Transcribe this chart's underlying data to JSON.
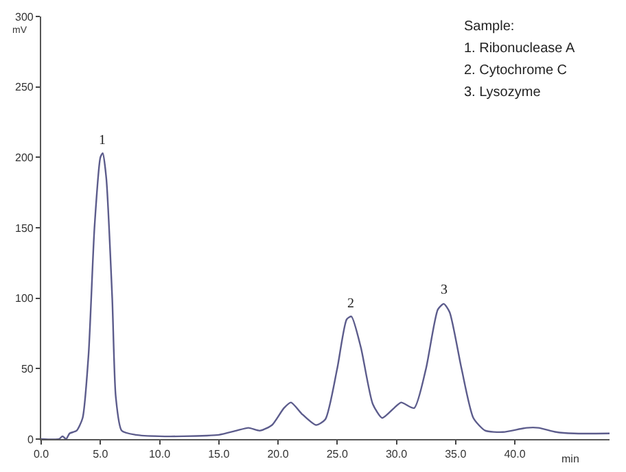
{
  "chart_data": {
    "type": "line",
    "xlabel": "min",
    "ylabel": "mV",
    "x": [
      0,
      1.5,
      1.8,
      2.1,
      2.4,
      3.0,
      3.5,
      4.0,
      4.5,
      5.0,
      5.2,
      5.5,
      6.0,
      6.3,
      6.8,
      8,
      10,
      12,
      15,
      16.5,
      17.5,
      18.5,
      19.5,
      20.5,
      21.1,
      22,
      23.2,
      24,
      25,
      25.8,
      26.2,
      27,
      28,
      28.8,
      29.8,
      30.4,
      31.5,
      32.5,
      33.5,
      34,
      34.5,
      35.5,
      36.5,
      37.5,
      39,
      41,
      42,
      43.5,
      45,
      48
    ],
    "series": [
      {
        "color": "#5c5c8c",
        "values": [
          0,
          0,
          2,
          0,
          4,
          6,
          15,
          60,
          150,
          200,
          203,
          185,
          100,
          30,
          6,
          3,
          2,
          2,
          3,
          6,
          8,
          6,
          10,
          22,
          26,
          18,
          10,
          14,
          50,
          85,
          87,
          65,
          25,
          15,
          22,
          26,
          22,
          50,
          92,
          96,
          90,
          50,
          15,
          6,
          5,
          8,
          8,
          5,
          4,
          4
        ]
      }
    ],
    "xlim": [
      0,
      48
    ],
    "ylim": [
      0,
      300
    ],
    "xticks": [
      {
        "value": 0,
        "label": "0.0"
      },
      {
        "value": 5,
        "label": "5.0"
      },
      {
        "value": 10,
        "label": "10.0"
      },
      {
        "value": 15,
        "label": "15.0"
      },
      {
        "value": 20,
        "label": "20.0"
      },
      {
        "value": 25,
        "label": "25.0"
      },
      {
        "value": 30,
        "label": "30.0"
      },
      {
        "value": 35,
        "label": "35.0"
      },
      {
        "value": 40,
        "label": "40.0"
      }
    ],
    "yticks": [
      0,
      50,
      100,
      150,
      200,
      250,
      300
    ],
    "annotations": [
      {
        "text": "1",
        "x": 5.2,
        "y": 203
      },
      {
        "text": "2",
        "x": 26.2,
        "y": 87
      },
      {
        "text": "3",
        "x": 34,
        "y": 96
      },
      "Sample:",
      "1. Ribonuclease A",
      "2. Cytochrome C",
      "3. Lysozyme"
    ],
    "marker": "none",
    "line_style": "solid"
  }
}
